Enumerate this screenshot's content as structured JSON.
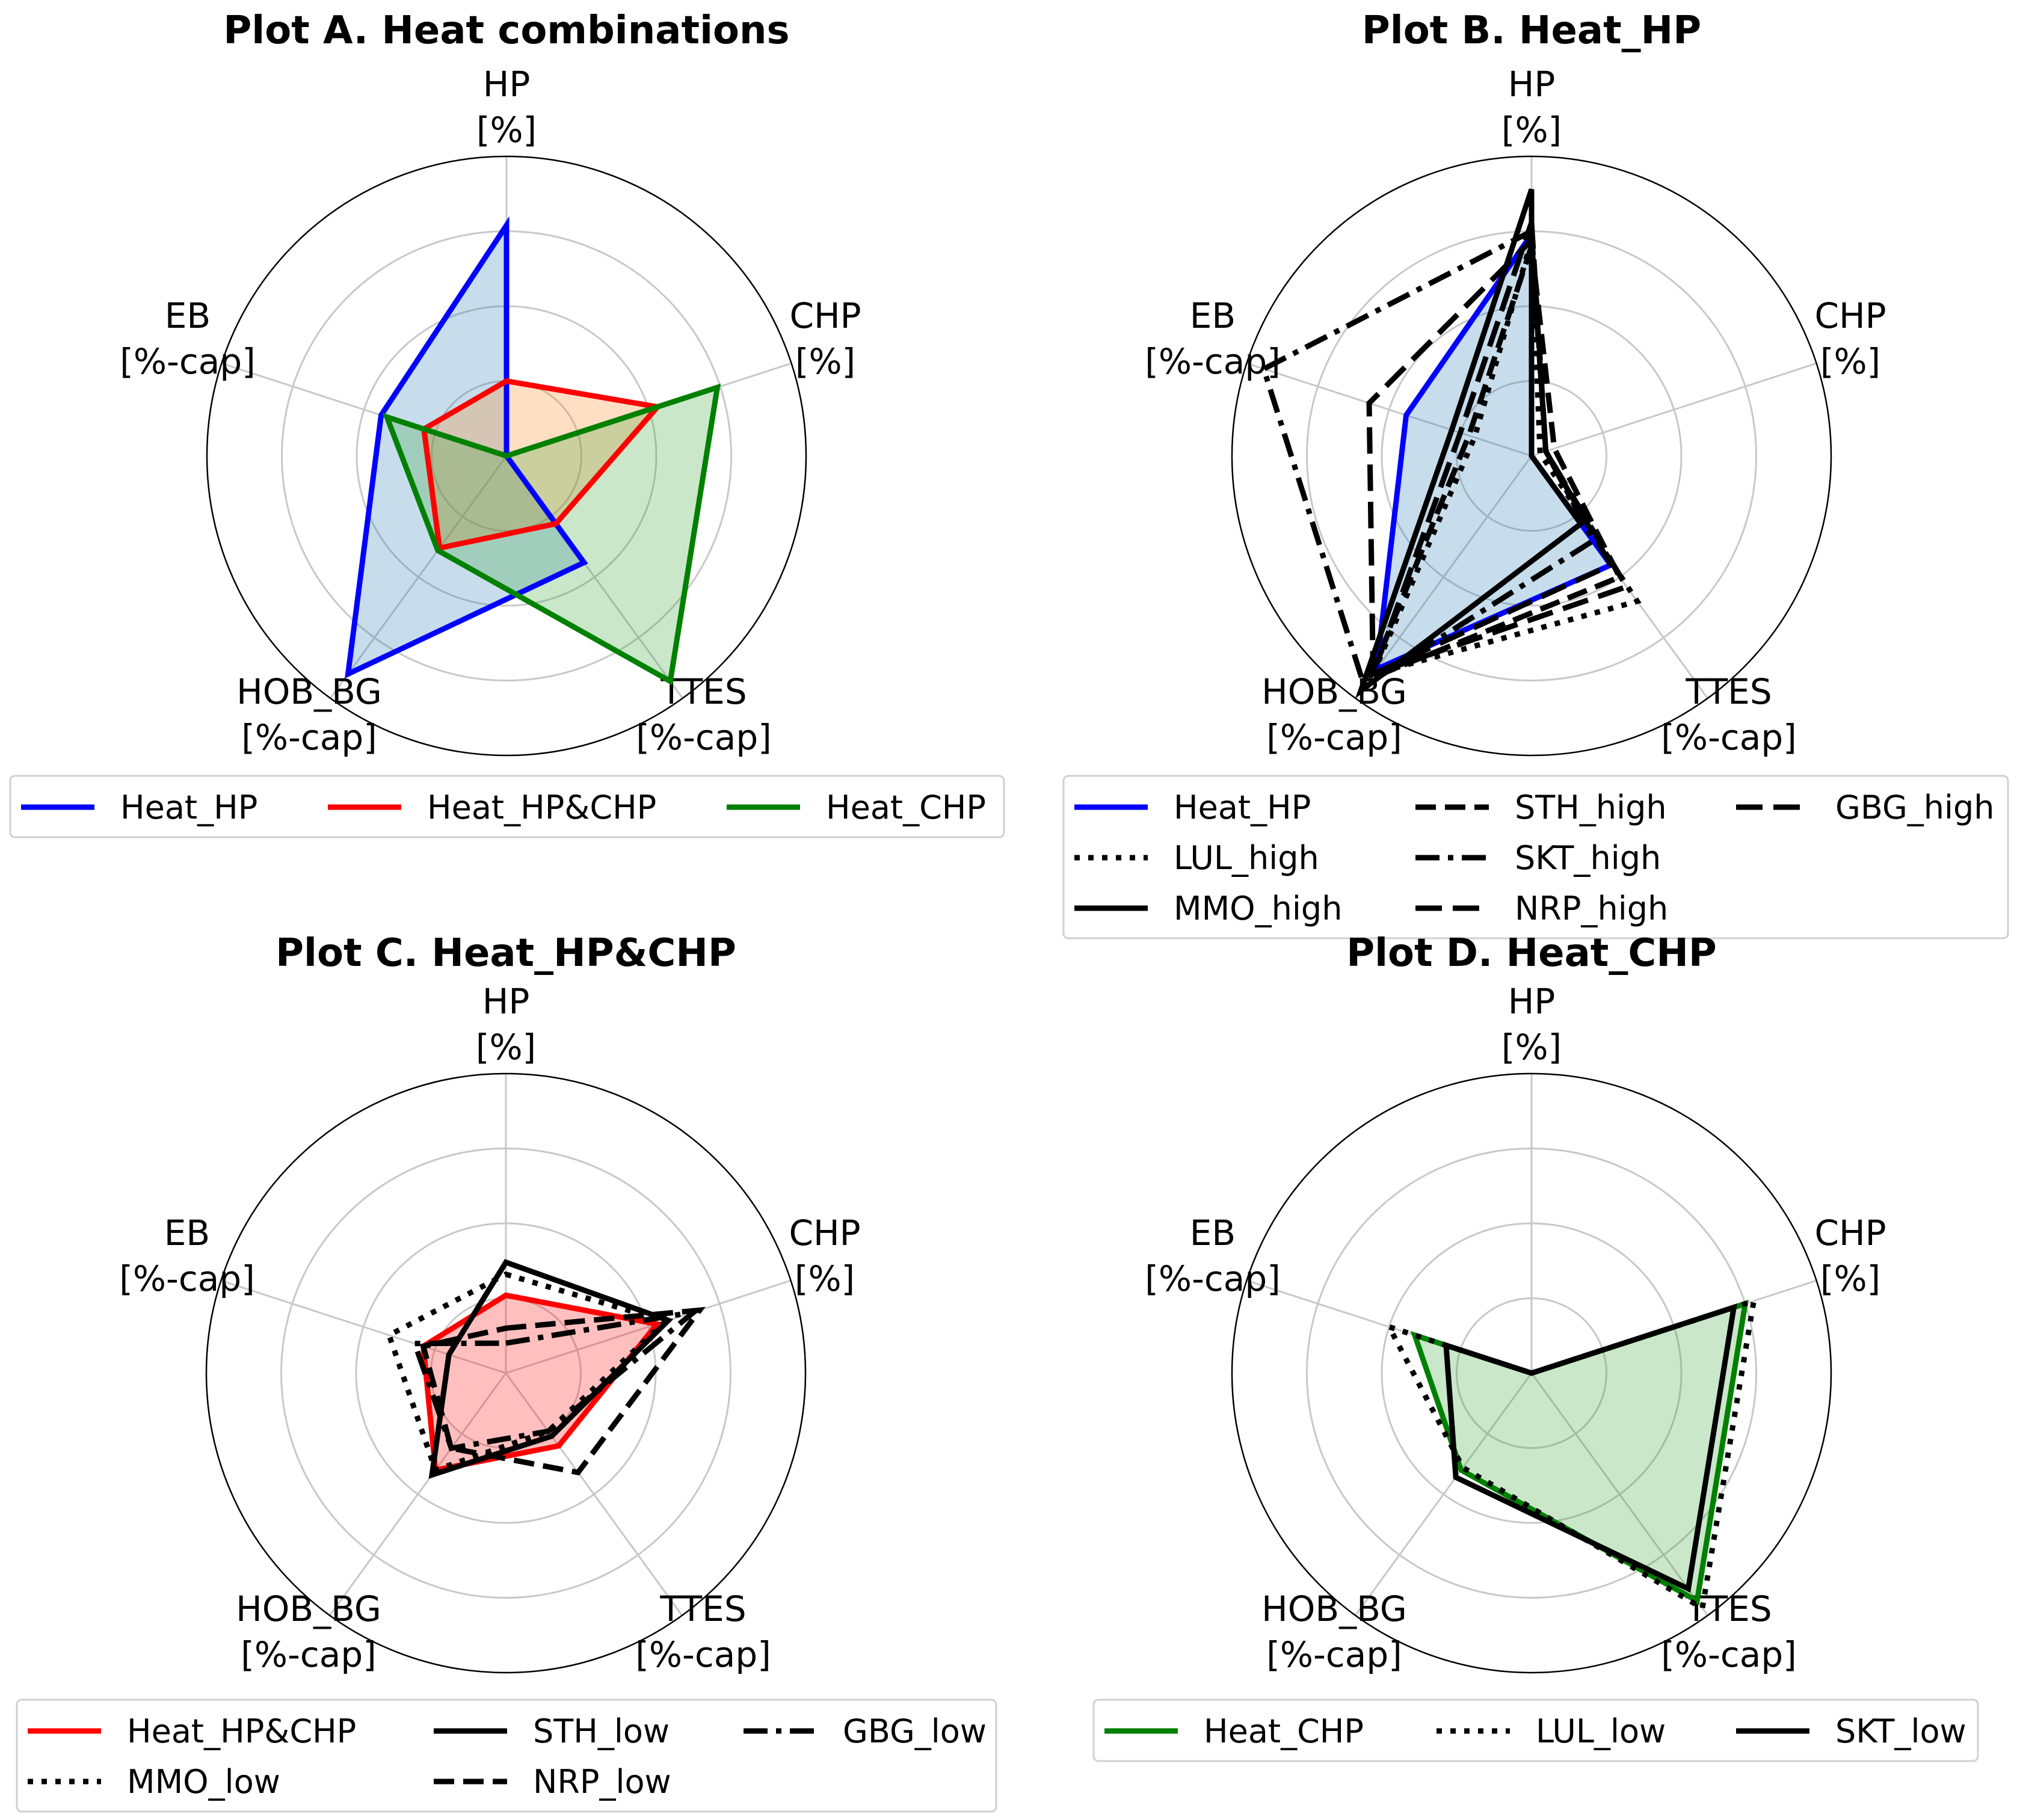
{
  "chart_data": [
    {
      "type": "radar",
      "title": "Plot A. Heat combinations",
      "axes": [
        {
          "name": "HP",
          "unit": "[%]"
        },
        {
          "name": "CHP",
          "unit": "[%]"
        },
        {
          "name": "TTES",
          "unit": "[%-cap]"
        },
        {
          "name": "HOB_BG",
          "unit": "[%-cap]"
        },
        {
          "name": "EB",
          "unit": "[%-cap]"
        }
      ],
      "rlim": [
        0,
        1
      ],
      "grid": true,
      "legend_columns": 3,
      "series": [
        {
          "name": "Heat_HP",
          "color": "#0000ff",
          "linestyle": "solid",
          "fill": "#1f77b4",
          "values": [
            0.77,
            0.0,
            0.44,
            0.9,
            0.44
          ]
        },
        {
          "name": "Heat_HP&CHP",
          "color": "#ff0000",
          "linestyle": "solid",
          "fill": "#ff7f0e",
          "values": [
            0.25,
            0.53,
            0.28,
            0.38,
            0.29
          ]
        },
        {
          "name": "Heat_CHP",
          "color": "#008000",
          "linestyle": "solid",
          "fill": "#2ca02c",
          "values": [
            0.0,
            0.74,
            0.93,
            0.39,
            0.42
          ]
        }
      ]
    },
    {
      "type": "radar",
      "title": "Plot B. Heat_HP",
      "axes": [
        {
          "name": "HP",
          "unit": "[%]"
        },
        {
          "name": "CHP",
          "unit": "[%]"
        },
        {
          "name": "TTES",
          "unit": "[%-cap]"
        },
        {
          "name": "HOB_BG",
          "unit": "[%-cap]"
        },
        {
          "name": "EB",
          "unit": "[%-cap]"
        }
      ],
      "rlim": [
        0,
        1
      ],
      "grid": true,
      "legend_columns": 3,
      "series": [
        {
          "name": "Heat_HP",
          "color": "#0000ff",
          "linestyle": "solid",
          "fill": "#1f77b4",
          "values": [
            0.74,
            0.0,
            0.45,
            0.88,
            0.44
          ]
        },
        {
          "name": "LUL_high",
          "color": "#000000",
          "linestyle": "dotted",
          "values": [
            0.72,
            0.03,
            0.6,
            0.9,
            0.2
          ]
        },
        {
          "name": "MMO_high",
          "color": "#000000",
          "linestyle": "solid",
          "values": [
            0.89,
            0.0,
            0.28,
            0.97,
            0.28
          ]
        },
        {
          "name": "STH_high",
          "color": "#000000",
          "linestyle": "dashed",
          "values": [
            0.7,
            0.08,
            0.5,
            0.92,
            0.22
          ]
        },
        {
          "name": "SKT_high",
          "color": "#000000",
          "linestyle": "dashdot",
          "values": [
            0.75,
            0.05,
            0.35,
            0.95,
            0.94
          ]
        },
        {
          "name": "NRP_high",
          "color": "#000000",
          "linestyle": "longdash",
          "values": [
            0.78,
            0.05,
            0.45,
            0.9,
            0.25
          ]
        },
        {
          "name": "GBG_high",
          "color": "#000000",
          "linestyle": "longdash",
          "values": [
            0.72,
            0.05,
            0.54,
            0.9,
            0.57
          ]
        }
      ]
    },
    {
      "type": "radar",
      "title": "Plot C. Heat_HP&CHP",
      "axes": [
        {
          "name": "HP",
          "unit": "[%]"
        },
        {
          "name": "CHP",
          "unit": "[%]"
        },
        {
          "name": "TTES",
          "unit": "[%-cap]"
        },
        {
          "name": "HOB_BG",
          "unit": "[%-cap]"
        },
        {
          "name": "EB",
          "unit": "[%-cap]"
        }
      ],
      "rlim": [
        0,
        1
      ],
      "grid": true,
      "legend_columns": 3,
      "series": [
        {
          "name": "Heat_HP&CHP",
          "color": "#ff0000",
          "linestyle": "solid",
          "fill": "#ff0000",
          "values": [
            0.26,
            0.53,
            0.3,
            0.4,
            0.29
          ]
        },
        {
          "name": "MMO_low",
          "color": "#000000",
          "linestyle": "dotted",
          "values": [
            0.33,
            0.56,
            0.24,
            0.4,
            0.41
          ]
        },
        {
          "name": "STH_low",
          "color": "#000000",
          "linestyle": "solid",
          "values": [
            0.37,
            0.57,
            0.26,
            0.42,
            0.2
          ]
        },
        {
          "name": "NRP_low",
          "color": "#000000",
          "linestyle": "dashed",
          "values": [
            0.15,
            0.68,
            0.41,
            0.31,
            0.29
          ]
        },
        {
          "name": "GBG_low",
          "color": "#000000",
          "linestyle": "dashdot",
          "values": [
            0.1,
            0.66,
            0.24,
            0.31,
            0.32
          ]
        }
      ]
    },
    {
      "type": "radar",
      "title": "Plot D. Heat_CHP",
      "axes": [
        {
          "name": "HP",
          "unit": "[%]"
        },
        {
          "name": "CHP",
          "unit": "[%]"
        },
        {
          "name": "TTES",
          "unit": "[%-cap]"
        },
        {
          "name": "HOB_BG",
          "unit": "[%-cap]"
        },
        {
          "name": "EB",
          "unit": "[%-cap]"
        }
      ],
      "rlim": [
        0,
        1
      ],
      "grid": true,
      "legend_columns": 3,
      "series": [
        {
          "name": "Heat_CHP",
          "color": "#008000",
          "linestyle": "solid",
          "fill": "#2ca02c",
          "values": [
            0.0,
            0.75,
            0.94,
            0.4,
            0.41
          ]
        },
        {
          "name": "LUL_low",
          "color": "#000000",
          "linestyle": "dotted",
          "values": [
            0.0,
            0.78,
            0.97,
            0.39,
            0.5
          ]
        },
        {
          "name": "SKT_low",
          "color": "#000000",
          "linestyle": "solid",
          "values": [
            0.0,
            0.71,
            0.89,
            0.43,
            0.3
          ]
        }
      ]
    }
  ]
}
